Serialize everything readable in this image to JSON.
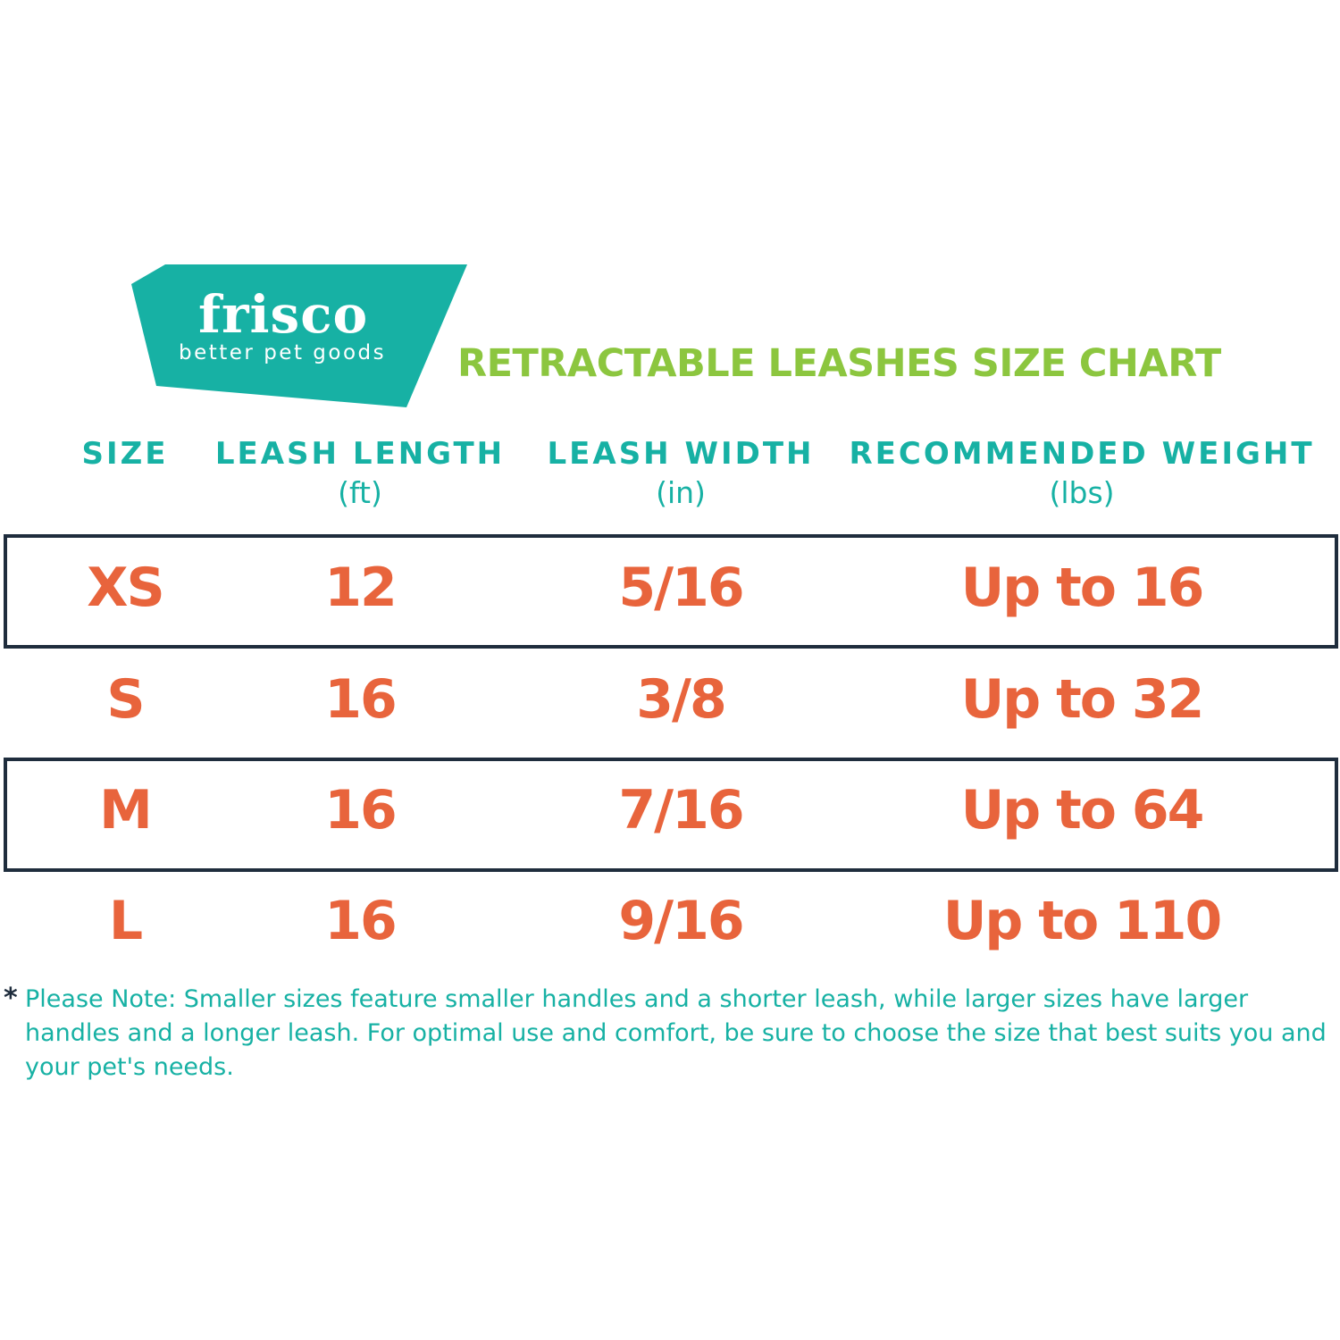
{
  "colors": {
    "brand_teal": "#17b1a4",
    "title_green": "#8cc63f",
    "value_orange": "#e8643c",
    "border": "#1f2d3d"
  },
  "logo": {
    "name": "frisco",
    "tagline": "better pet goods"
  },
  "title": "RETRACTABLE LEASHES SIZE CHART",
  "columns": [
    {
      "label": "SIZE",
      "unit": ""
    },
    {
      "label": "LEASH LENGTH",
      "unit": "(ft)"
    },
    {
      "label": "LEASH WIDTH",
      "unit": "(in)"
    },
    {
      "label": "RECOMMENDED WEIGHT",
      "unit": "(lbs)"
    }
  ],
  "rows": [
    {
      "size": "XS",
      "length": "12",
      "width": "5/16",
      "weight": "Up to 16",
      "boxed": true
    },
    {
      "size": "S",
      "length": "16",
      "width": "3/8",
      "weight": "Up to 32",
      "boxed": false
    },
    {
      "size": "M",
      "length": "16",
      "width": "7/16",
      "weight": "Up to 64",
      "boxed": true
    },
    {
      "size": "L",
      "length": "16",
      "width": "9/16",
      "weight": "Up to 110",
      "boxed": false
    }
  ],
  "note": {
    "marker": "*",
    "text": "Please Note: Smaller sizes feature smaller handles and a shorter leash, while larger sizes have larger handles and a longer leash. For optimal use and comfort, be sure to choose the size that best suits you and your pet's needs."
  }
}
